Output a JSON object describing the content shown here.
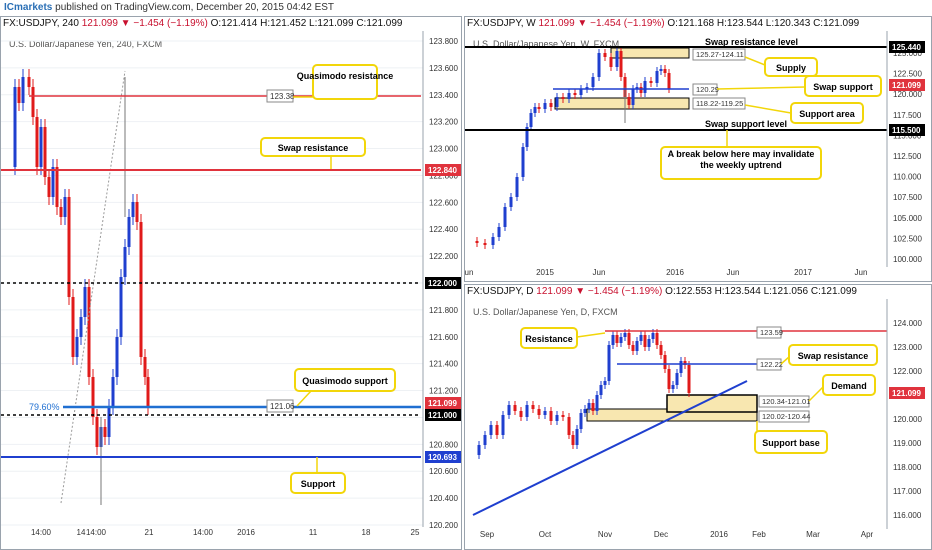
{
  "header": {
    "brand": "ICmarkets",
    "text": " published on TradingView.com, December 20, 2015 04:42 EST"
  },
  "colors": {
    "candle_up": "#1f3fcf",
    "candle_down": "#e01a1a",
    "resistance": "#e0333d",
    "support": "#1f3fcf",
    "zone_fill": "#f8e7b0",
    "callout_border": "#f2d60a",
    "level_black": "#000000",
    "price_tag_red": "#e0333d"
  },
  "panels": {
    "h4": {
      "symbol": "FX:USDJPY, 240",
      "stats": "121.099 ▼ −1.454 (−1.19%)",
      "ohlc": "O:121.414 H:121.452 L:121.099 C:121.099",
      "inner_title": "U.S. Dollar/Japanese Yen, 240, FXCM",
      "price_axis": [
        "123.800",
        "123.600",
        "123.400",
        "123.200",
        "123.000",
        "122.800",
        "122.600",
        "122.400",
        "122.200",
        "122.000",
        "121.800",
        "121.600",
        "121.400",
        "121.200",
        "121.000",
        "120.800",
        "120.600",
        "120.400",
        "120.200"
      ],
      "time_axis": [
        "14:00",
        "14",
        "14:00",
        "21",
        "14:00",
        "2016",
        "11",
        "18",
        "25"
      ],
      "level_tags": [
        "123.38",
        "121.06"
      ],
      "axis_tags": [
        "122.840",
        "122.000",
        "121.099",
        "121.000",
        "120.693"
      ],
      "fib_label": "79.60%",
      "callouts": [
        "Quasimodo resistance",
        "Swap resistance",
        "Quasimodo support",
        "Support"
      ]
    },
    "weekly": {
      "symbol": "FX:USDJPY, W",
      "stats": "121.099 ▼ −1.454 (−1.19%)",
      "ohlc": "O:121.168 H:123.544 L:120.343 C:121.099",
      "inner_title": "U.S. Dollar/Japanese Yen, W, FXCM",
      "price_axis": [
        "125.000",
        "122.500",
        "120.000",
        "117.500",
        "115.000",
        "112.500",
        "110.000",
        "107.500",
        "105.000",
        "102.500",
        "100.000"
      ],
      "time_axis": [
        "un",
        "2015",
        "Jun",
        "2016",
        "Jun",
        "2017",
        "Jun"
      ],
      "level_tags": [
        "125.27-124.11",
        "120.29",
        "118.22-119.25"
      ],
      "axis_tags": [
        "125.440",
        "121.099",
        "115.500"
      ],
      "labels": [
        "Swap resistance level",
        "Swap support level"
      ],
      "callouts": [
        "Supply",
        "Swap support",
        "Support area",
        "A break below here may invalidate the weekly uptrend"
      ]
    },
    "daily": {
      "symbol": "FX:USDJPY, D",
      "stats": "121.099 ▼ −1.454 (−1.19%)",
      "ohlc": "O:122.553 H:123.544 L:121.056 C:121.099",
      "inner_title": "U.S. Dollar/Japanese Yen, D, FXCM",
      "price_axis": [
        "124.000",
        "123.000",
        "122.000",
        "121.000",
        "120.000",
        "119.000",
        "118.000",
        "117.000",
        "116.000"
      ],
      "time_axis": [
        "Sep",
        "Oct",
        "Nov",
        "Dec",
        "2016",
        "Feb",
        "Mar",
        "Apr"
      ],
      "level_tags": [
        "123.59",
        "122.22",
        "120.34-121.01",
        "120.02-120.44"
      ],
      "axis_tags": [
        "121.099"
      ],
      "callouts": [
        "Resistance",
        "Swap resistance",
        "Demand",
        "Support base"
      ]
    }
  }
}
